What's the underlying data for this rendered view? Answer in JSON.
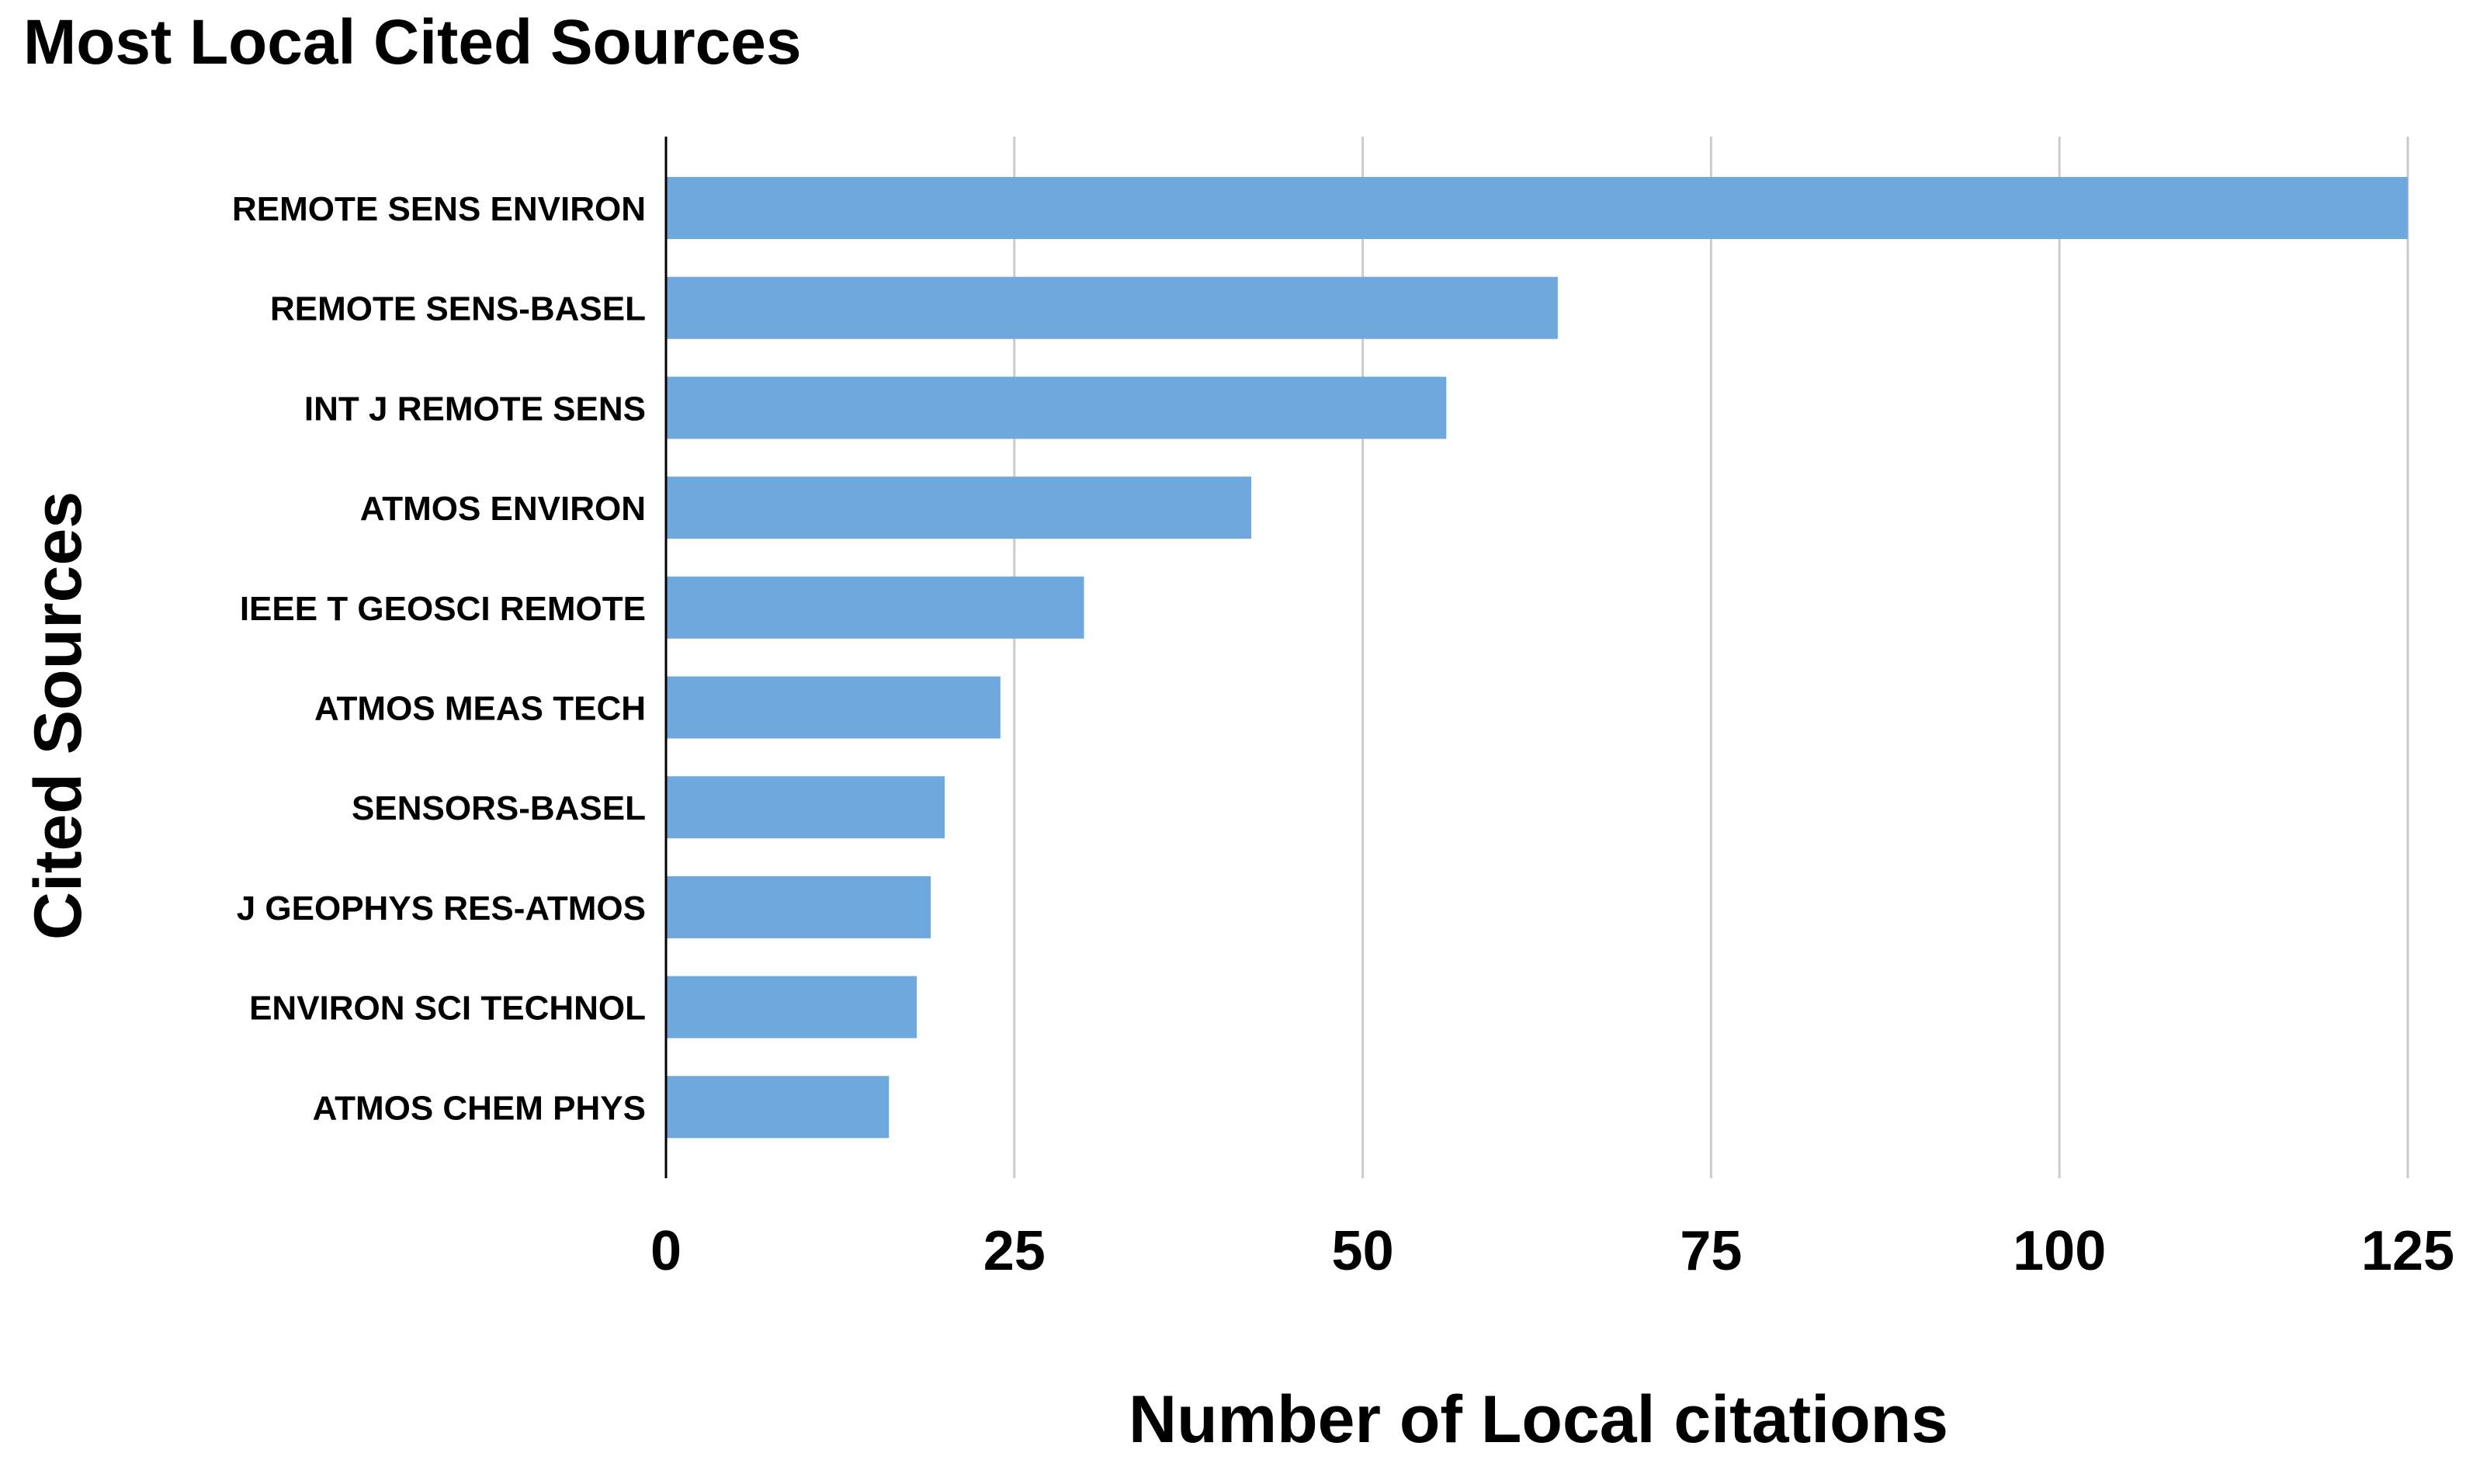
{
  "chart_data": {
    "type": "bar",
    "orientation": "horizontal",
    "title": "Most Local Cited Sources",
    "xlabel": "Number of Local citations",
    "ylabel": "Cited Sources",
    "categories": [
      "REMOTE SENS ENVIRON",
      "REMOTE SENS-BASEL",
      "INT J REMOTE SENS",
      "ATMOS ENVIRON",
      "IEEE T GEOSCI REMOTE",
      "ATMOS MEAS TECH",
      "SENSORS-BASEL",
      "J GEOPHYS RES-ATMOS",
      "ENVIRON SCI TECHNOL",
      "ATMOS CHEM PHYS"
    ],
    "values": [
      125,
      64,
      56,
      42,
      30,
      24,
      20,
      19,
      18,
      16
    ],
    "xlim": [
      0,
      125
    ],
    "xticks": [
      "0",
      "25",
      "50",
      "75",
      "100",
      "125"
    ],
    "grid": "vertical",
    "legend": "none",
    "bar_color": "#6FA8DC",
    "grid_color": "#CCCCCC",
    "axis_color": "#000000"
  }
}
